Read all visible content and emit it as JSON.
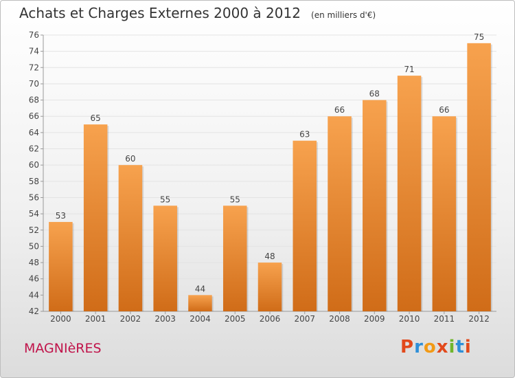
{
  "title": "Achats et Charges Externes 2000 à 2012",
  "unit": "(en milliers d'€)",
  "commune": "MAGNIèRES",
  "brand": {
    "text": "Proxiti",
    "letter_colors": [
      "#e2491b",
      "#2e8fd8",
      "#f29a16",
      "#e2491b",
      "#6fb52c",
      "#2e8fd8",
      "#e2491b"
    ]
  },
  "colors": {
    "bar_top": "#f7a24e",
    "bar_bottom": "#d06c18",
    "commune": "#c0134a"
  },
  "chart_data": {
    "type": "bar",
    "categories": [
      "2000",
      "2001",
      "2002",
      "2003",
      "2004",
      "2005",
      "2006",
      "2007",
      "2008",
      "2009",
      "2010",
      "2011",
      "2012"
    ],
    "values": [
      53,
      65,
      60,
      55,
      44,
      55,
      48,
      63,
      66,
      68,
      71,
      66,
      75
    ],
    "ylim": [
      42,
      76
    ],
    "yticks": [
      42,
      44,
      46,
      48,
      50,
      52,
      54,
      56,
      58,
      60,
      62,
      64,
      66,
      68,
      70,
      72,
      74,
      76
    ],
    "grid": true,
    "data_labels": true
  }
}
